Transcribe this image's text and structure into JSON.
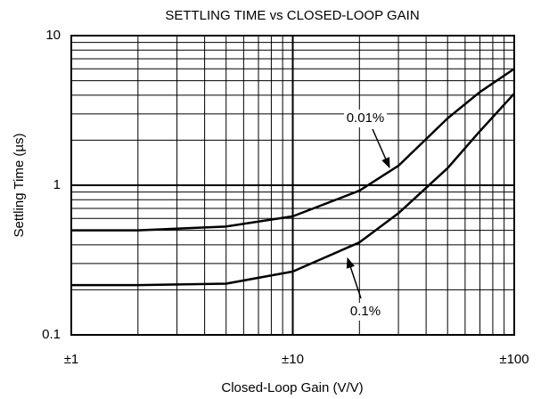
{
  "chart_data": {
    "type": "line",
    "title": "SETTLING TIME vs CLOSED-LOOP GAIN",
    "x_label": "Closed-Loop Gain (V/V)",
    "y_label": "Settling Time (µs)",
    "x": [
      1,
      2,
      5,
      10,
      20,
      30,
      50,
      70,
      100
    ],
    "series": [
      {
        "name": "0.01%",
        "color": "#000000",
        "values": [
          0.5,
          0.5,
          0.53,
          0.62,
          0.92,
          1.35,
          2.8,
          4.2,
          6.0
        ]
      },
      {
        "name": "0.1%",
        "color": "#000000",
        "values": [
          0.215,
          0.215,
          0.22,
          0.265,
          0.415,
          0.65,
          1.3,
          2.3,
          4.1
        ]
      }
    ],
    "xlim": [
      1,
      100
    ],
    "ylim": [
      0.1,
      10
    ],
    "xticks": [
      {
        "value": 1,
        "label": "±1"
      },
      {
        "value": 10,
        "label": "±10"
      },
      {
        "value": 100,
        "label": "±100"
      }
    ],
    "yticks": [
      0.1,
      1,
      10
    ],
    "xscale": "log",
    "yscale": "log",
    "grid": true
  }
}
